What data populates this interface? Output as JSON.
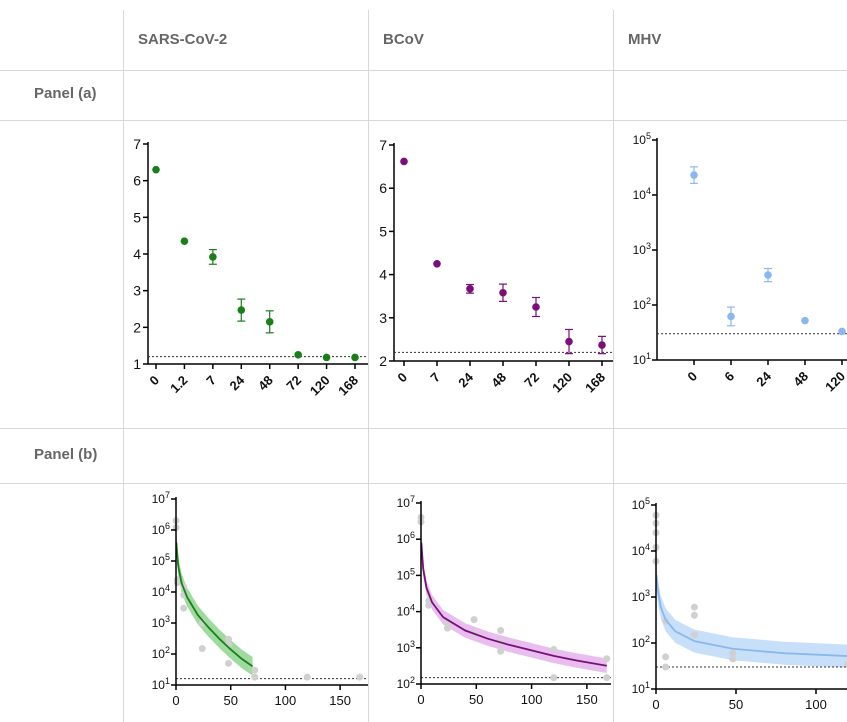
{
  "table": {
    "columns": [
      "SARS-CoV-2",
      "BCoV",
      "MHV"
    ],
    "rows": [
      "Panel (a)",
      "Panel (b)"
    ]
  },
  "colors": {
    "sars": "#1a7f1a",
    "bcov": "#7a0f7a",
    "mhv": "#8ab8ee",
    "grey_points": "#d0d0d0",
    "sars_band": "#7fcf7f",
    "bcov_band": "#e0a8ea",
    "mhv_band": "#b5d4f7"
  },
  "chart_data": [
    {
      "type": "scatter",
      "panel": "a",
      "virus": "SARS-CoV-2",
      "categories": [
        "0",
        "1.2",
        "7",
        "24",
        "48",
        "72",
        "120",
        "168"
      ],
      "values": [
        6.3,
        4.35,
        3.92,
        2.47,
        2.15,
        1.25,
        1.18,
        1.18
      ],
      "errors": [
        0,
        0,
        0.2,
        0.3,
        0.3,
        0,
        0,
        0
      ],
      "ylim": [
        1,
        7
      ],
      "yticks": [
        "1",
        "2",
        "3",
        "4",
        "5",
        "6",
        "7"
      ],
      "detection_limit": 1.2,
      "xlabel": "",
      "ylabel": ""
    },
    {
      "type": "scatter",
      "panel": "a",
      "virus": "BCoV",
      "categories": [
        "0",
        "7",
        "24",
        "48",
        "72",
        "120",
        "168"
      ],
      "values": [
        6.62,
        4.25,
        3.67,
        3.58,
        3.25,
        2.45,
        2.37
      ],
      "errors": [
        0,
        0,
        0.1,
        0.2,
        0.22,
        0.28,
        0.2
      ],
      "ylim": [
        2,
        7
      ],
      "yticks": [
        "2",
        "3",
        "4",
        "5",
        "6",
        "7"
      ],
      "detection_limit": 2.2,
      "xlabel": "",
      "ylabel": ""
    },
    {
      "type": "scatter",
      "panel": "a",
      "virus": "MHV",
      "categories": [
        "0",
        "6",
        "24",
        "48",
        "120"
      ],
      "values": [
        23000,
        62,
        350,
        52,
        33
      ],
      "errors_log": [
        0.15,
        0.17,
        0.12,
        0,
        0
      ],
      "ylim": [
        10,
        100000
      ],
      "yscale": "log",
      "yticks": [
        "10",
        "10",
        "10",
        "10",
        "10"
      ],
      "ytick_exponents": [
        "1",
        "2",
        "3",
        "4",
        "5"
      ],
      "detection_limit": 30,
      "xlabel": "",
      "ylabel": ""
    },
    {
      "type": "scatter",
      "panel": "b",
      "virus": "SARS-CoV-2",
      "points": [
        [
          0,
          2000000
        ],
        [
          0,
          1200000
        ],
        [
          1.2,
          25000
        ],
        [
          1.2,
          20000
        ],
        [
          7,
          15000
        ],
        [
          7,
          8000
        ],
        [
          7,
          3000
        ],
        [
          24,
          1000
        ],
        [
          24,
          150
        ],
        [
          48,
          300
        ],
        [
          48,
          200
        ],
        [
          48,
          50
        ],
        [
          72,
          30
        ],
        [
          72,
          18
        ],
        [
          120,
          18
        ],
        [
          168,
          18
        ]
      ],
      "fit": [
        [
          0.3,
          400000
        ],
        [
          2,
          70000
        ],
        [
          5,
          20000
        ],
        [
          10,
          7000
        ],
        [
          20,
          1800
        ],
        [
          30,
          700
        ],
        [
          40,
          300
        ],
        [
          50,
          140
        ],
        [
          60,
          70
        ],
        [
          70,
          40
        ]
      ],
      "band_log_halfwidth": 0.3,
      "xlim": [
        0,
        170
      ],
      "xticks": [
        "0",
        "50",
        "100",
        "150"
      ],
      "ylim": [
        10,
        10000000
      ],
      "yscale": "log",
      "yticks": [
        "10",
        "10",
        "10",
        "10",
        "10",
        "10",
        "10"
      ],
      "ytick_exponents": [
        "1",
        "2",
        "3",
        "4",
        "5",
        "6",
        "7"
      ],
      "detection_limit": 16,
      "xlabel": "",
      "ylabel": ""
    },
    {
      "type": "scatter",
      "panel": "b",
      "virus": "BCoV",
      "points": [
        [
          0,
          4000000
        ],
        [
          0,
          3000000
        ],
        [
          7,
          20000
        ],
        [
          7,
          15000
        ],
        [
          24,
          5000
        ],
        [
          24,
          3500
        ],
        [
          48,
          6000
        ],
        [
          48,
          2500
        ],
        [
          72,
          3000
        ],
        [
          72,
          1500
        ],
        [
          72,
          800
        ],
        [
          120,
          900
        ],
        [
          120,
          150
        ],
        [
          168,
          500
        ],
        [
          168,
          150
        ]
      ],
      "fit": [
        [
          0.3,
          800000
        ],
        [
          2,
          150000
        ],
        [
          5,
          45000
        ],
        [
          10,
          18000
        ],
        [
          20,
          7000
        ],
        [
          40,
          3000
        ],
        [
          60,
          1800
        ],
        [
          80,
          1200
        ],
        [
          100,
          850
        ],
        [
          120,
          600
        ],
        [
          140,
          450
        ],
        [
          168,
          320
        ]
      ],
      "band_log_halfwidth": 0.2,
      "xlim": [
        0,
        170
      ],
      "xticks": [
        "0",
        "50",
        "100",
        "150"
      ],
      "ylim": [
        100,
        10000000
      ],
      "yscale": "log",
      "yticks": [
        "10",
        "10",
        "10",
        "10",
        "10",
        "10"
      ],
      "ytick_exponents": [
        "2",
        "3",
        "4",
        "5",
        "6",
        "7"
      ],
      "detection_limit": 150,
      "xlabel": "",
      "ylabel": ""
    },
    {
      "type": "scatter",
      "panel": "b",
      "virus": "MHV",
      "points": [
        [
          0,
          60000
        ],
        [
          0,
          40000
        ],
        [
          0,
          25000
        ],
        [
          0,
          12000
        ],
        [
          0,
          6000
        ],
        [
          6,
          300
        ],
        [
          6,
          50
        ],
        [
          6,
          30
        ],
        [
          24,
          600
        ],
        [
          24,
          400
        ],
        [
          24,
          150
        ],
        [
          48,
          60
        ],
        [
          48,
          45
        ],
        [
          120,
          35
        ]
      ],
      "fit": [
        [
          0.3,
          3000
        ],
        [
          1,
          1500
        ],
        [
          3,
          600
        ],
        [
          6,
          320
        ],
        [
          12,
          180
        ],
        [
          24,
          110
        ],
        [
          48,
          75
        ],
        [
          80,
          60
        ],
        [
          120,
          52
        ]
      ],
      "band_log_halfwidth": 0.25,
      "xlim": [
        0,
        130
      ],
      "xticks": [
        "0",
        "50",
        "100"
      ],
      "ylim": [
        10,
        100000
      ],
      "yscale": "log",
      "yticks": [
        "10",
        "10",
        "10",
        "10",
        "10"
      ],
      "ytick_exponents": [
        "1",
        "2",
        "3",
        "4",
        "5"
      ],
      "detection_limit": 30,
      "xlabel": "",
      "ylabel": ""
    }
  ]
}
